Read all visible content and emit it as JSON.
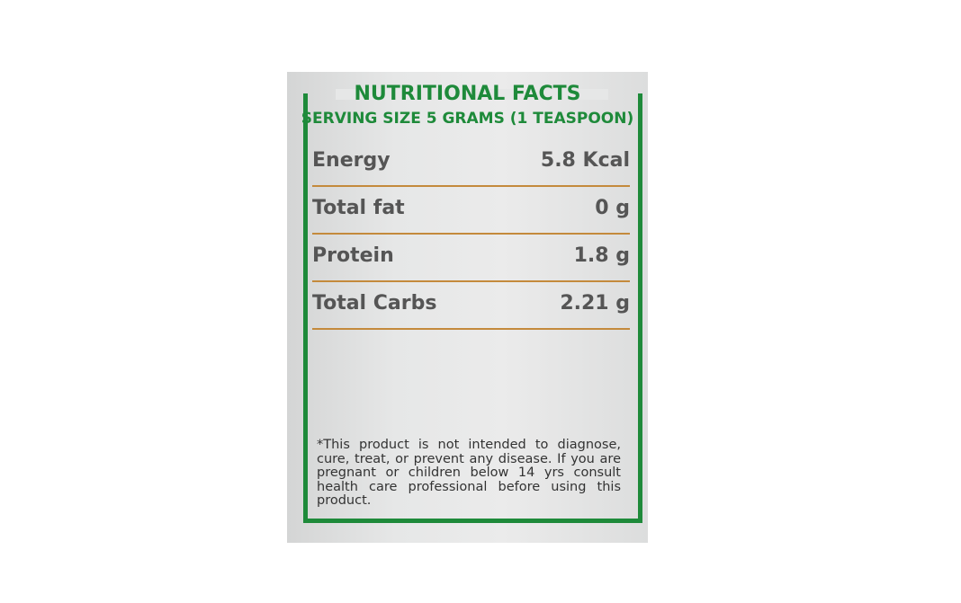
{
  "title": "NUTRITIONAL FACTS",
  "serving": "SERVING SIZE 5 GRAMS (1 TEASPOON)",
  "rows": [
    [
      "Energy",
      "5.8 Kcal"
    ],
    [
      "Total fat",
      "0 g"
    ],
    [
      "Protein",
      "1.8 g"
    ],
    [
      "Total Carbs",
      "2.21 g"
    ]
  ],
  "disclaimer": "*This product is not intended to diagnose, cure, treat, or prevent any disease. If you are pregnant or children below 14 yrs consult health care professional before using this product."
}
